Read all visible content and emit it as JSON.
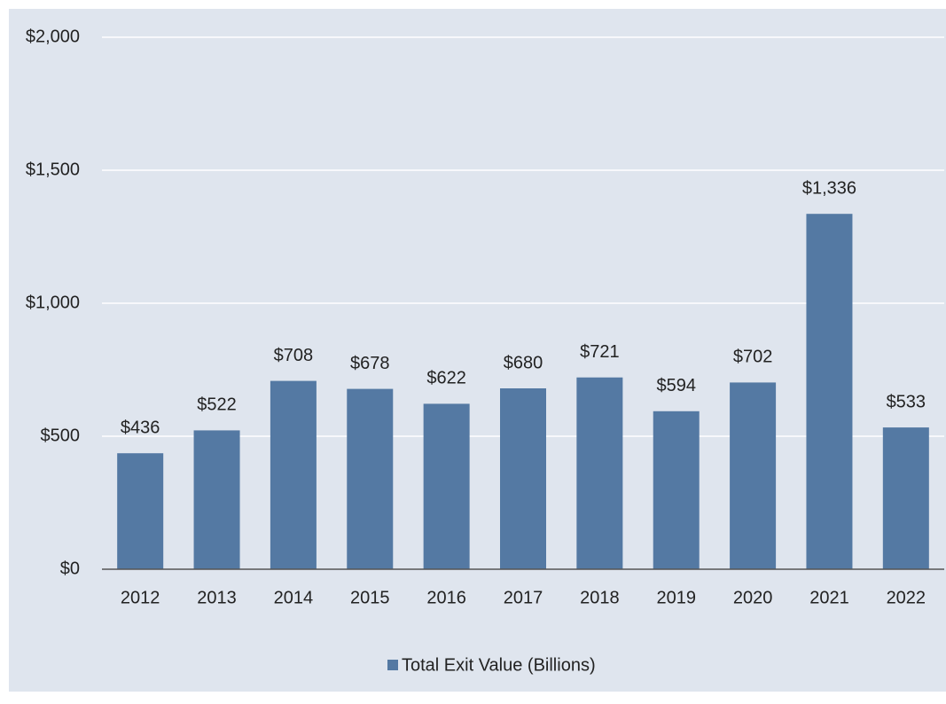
{
  "chart_data": {
    "type": "bar",
    "categories": [
      "2012",
      "2013",
      "2014",
      "2015",
      "2016",
      "2017",
      "2018",
      "2019",
      "2020",
      "2021",
      "2022"
    ],
    "series": [
      {
        "name": "Total Exit Value (Billions)",
        "color": "#5479a3",
        "values": [
          436,
          522,
          708,
          678,
          622,
          680,
          721,
          594,
          702,
          1336,
          533
        ],
        "value_labels": [
          "$436",
          "$522",
          "$708",
          "$678",
          "$622",
          "$680",
          "$721",
          "$594",
          "$702",
          "$1,336",
          "$533"
        ]
      }
    ],
    "ylim": [
      0,
      2000
    ],
    "yticks": [
      {
        "value": 0,
        "label": "$0"
      },
      {
        "value": 500,
        "label": "$500"
      },
      {
        "value": 1000,
        "label": "$1,000"
      },
      {
        "value": 1500,
        "label": "$1,500"
      },
      {
        "value": 2000,
        "label": "$2,000"
      }
    ],
    "grid": true,
    "legend": "bottom"
  }
}
